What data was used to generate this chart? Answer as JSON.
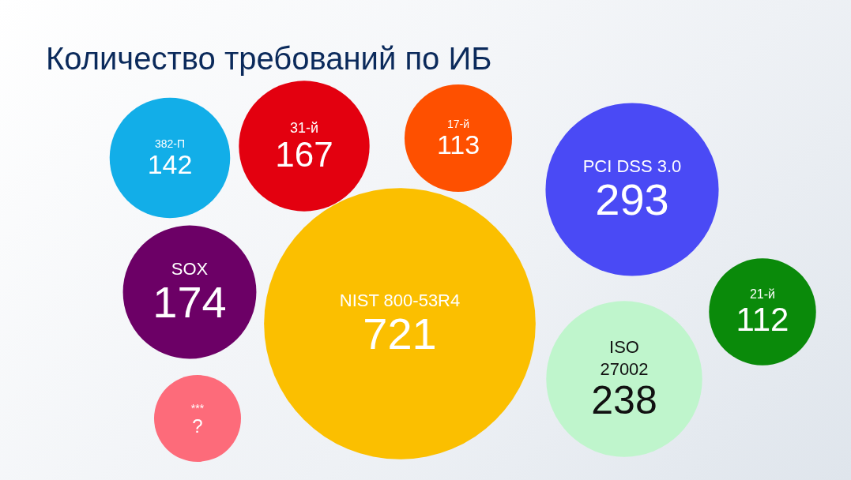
{
  "chart_data": {
    "type": "other",
    "title": "Количество требований по ИБ",
    "categories": [
      "382-П",
      "31-й",
      "17-й",
      "PCI DSS 3.0",
      "SOX",
      "NIST 800-53R4",
      "21-й",
      "***",
      "ISO 27002"
    ],
    "values": [
      142,
      167,
      113,
      293,
      174,
      721,
      112,
      null,
      238
    ],
    "value_labels": [
      "142",
      "167",
      "113",
      "293",
      "174",
      "721",
      "112",
      "?",
      "238"
    ],
    "colors": [
      "#12aee8",
      "#e3000f",
      "#fe5000",
      "#4a4af5",
      "#6c0066",
      "#fbbf00",
      "#0a8a0a",
      "#fd6b7a",
      "#bff5cc"
    ],
    "legend": false
  }
}
